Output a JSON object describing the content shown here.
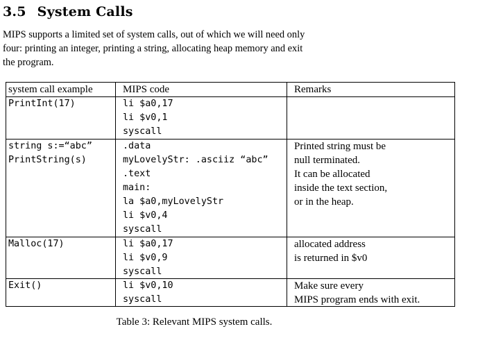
{
  "section": {
    "number": "3.5",
    "title": "System Calls"
  },
  "intro": [
    "MIPS supports a limited set of system calls, out of which we will need only",
    "four: printing an integer, printing a string, allocating heap memory and exit",
    "the program."
  ],
  "table": {
    "headers": [
      "system call example",
      "MIPS code",
      "Remarks"
    ],
    "rows": [
      {
        "example": [
          "PrintInt(17)"
        ],
        "code": [
          "li $a0,17",
          "li $v0,1",
          "syscall"
        ],
        "remarks": []
      },
      {
        "example": [
          "string s:=“abc”",
          "PrintString(s)"
        ],
        "code": [
          ".data",
          "myLovelyStr: .asciiz “abc”",
          ".text",
          "main:",
          "la $a0,myLovelyStr",
          "li $v0,4",
          "syscall"
        ],
        "remarks": [
          "Printed string must be",
          "null terminated.",
          "It can be allocated",
          "inside the text section,",
          "or in the heap."
        ]
      },
      {
        "example": [
          "Malloc(17)"
        ],
        "code": [
          "li $a0,17",
          "li $v0,9",
          "syscall"
        ],
        "remarks": [
          "allocated address",
          "is returned in $v0"
        ]
      },
      {
        "example": [
          "Exit()"
        ],
        "code": [
          "li $v0,10",
          "syscall"
        ],
        "remarks": [
          "Make sure every",
          "MIPS program ends with exit."
        ]
      }
    ]
  },
  "caption": "Table 3: Relevant MIPS system calls."
}
